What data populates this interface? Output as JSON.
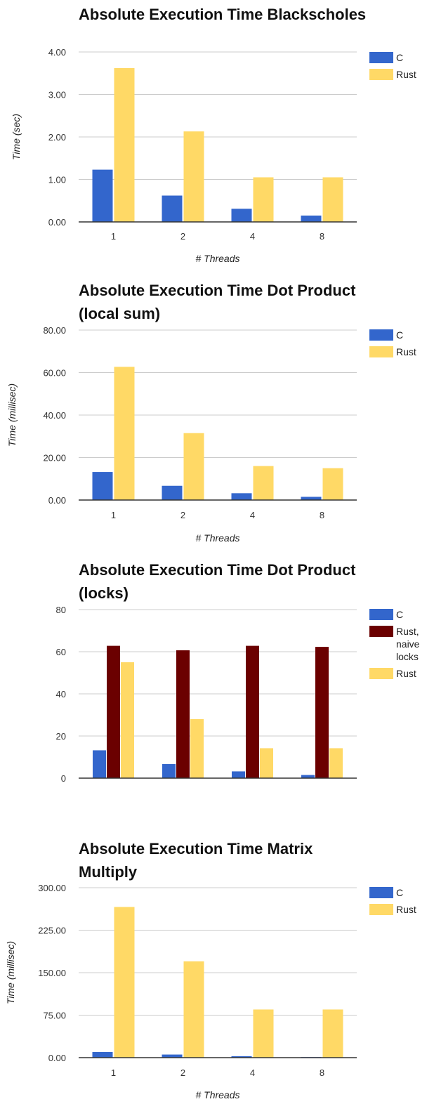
{
  "colors": {
    "c": "#3366cc",
    "rust": "#ffd966",
    "rust_naive": "#6b0000",
    "grid": "#cccccc",
    "axis": "#333333"
  },
  "chart_data": [
    {
      "type": "bar",
      "title": "Absolute Execution Time Blackscholes",
      "xlabel": "# Threads",
      "ylabel": "Time (sec)",
      "categories": [
        "1",
        "2",
        "4",
        "8"
      ],
      "ylim": [
        0,
        4
      ],
      "yticks": [
        "0.00",
        "1.00",
        "2.00",
        "3.00",
        "4.00"
      ],
      "series": [
        {
          "name": "C",
          "color_key": "c",
          "values": [
            1.23,
            0.62,
            0.31,
            0.15
          ]
        },
        {
          "name": "Rust",
          "color_key": "rust",
          "values": [
            3.62,
            2.13,
            1.05,
            1.05
          ]
        }
      ],
      "legend": "right",
      "grid": true
    },
    {
      "type": "bar",
      "title": "Absolute Execution Time Dot Product (local sum)",
      "xlabel": "# Threads",
      "ylabel": "Time (millisec)",
      "categories": [
        "1",
        "2",
        "4",
        "8"
      ],
      "ylim": [
        0,
        80
      ],
      "yticks": [
        "0.00",
        "20.00",
        "40.00",
        "60.00",
        "80.00"
      ],
      "series": [
        {
          "name": "C",
          "color_key": "c",
          "values": [
            13.2,
            6.7,
            3.2,
            1.5
          ]
        },
        {
          "name": "Rust",
          "color_key": "rust",
          "values": [
            62.7,
            31.5,
            16.0,
            15.0
          ]
        }
      ],
      "legend": "right",
      "grid": true
    },
    {
      "type": "bar",
      "title": "Absolute Execution Time Dot Product (locks)",
      "xlabel": "",
      "ylabel": "",
      "categories": [
        "",
        "",
        "",
        ""
      ],
      "ylim": [
        0,
        80
      ],
      "yticks": [
        "0",
        "20",
        "40",
        "60",
        "80"
      ],
      "series": [
        {
          "name": "C",
          "color_key": "c",
          "values": [
            13.2,
            6.7,
            3.2,
            1.5
          ]
        },
        {
          "name": "Rust, naive locks",
          "color_key": "rust_naive",
          "values": [
            62.8,
            60.7,
            62.8,
            62.3
          ]
        },
        {
          "name": "Rust",
          "color_key": "rust",
          "values": [
            55.0,
            28.0,
            14.2,
            14.2
          ]
        }
      ],
      "legend": "right",
      "grid": true
    },
    {
      "type": "bar",
      "title": "Absolute Execution Time Matrix Multiply",
      "xlabel": "# Threads",
      "ylabel": "Time (millisec)",
      "categories": [
        "1",
        "2",
        "4",
        "8"
      ],
      "ylim": [
        0,
        300
      ],
      "yticks": [
        "0.00",
        "75.00",
        "150.00",
        "225.00",
        "300.00"
      ],
      "series": [
        {
          "name": "C",
          "color_key": "c",
          "values": [
            10,
            5.5,
            2.5,
            1
          ]
        },
        {
          "name": "Rust",
          "color_key": "rust",
          "values": [
            266,
            170,
            85,
            85
          ]
        }
      ],
      "legend": "right",
      "grid": true
    }
  ]
}
